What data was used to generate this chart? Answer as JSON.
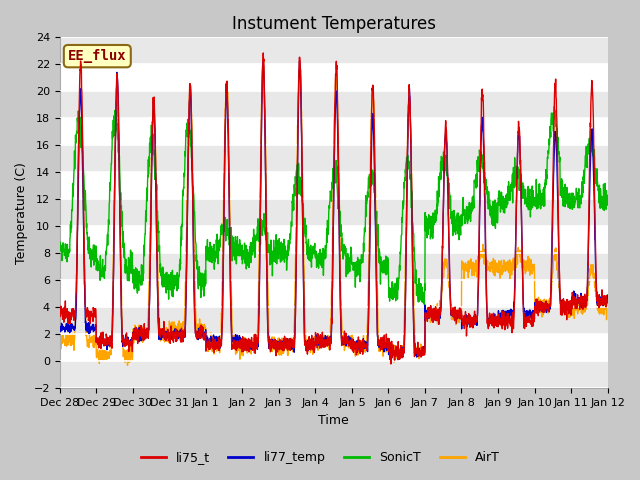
{
  "title": "Instument Temperatures",
  "xlabel": "Time",
  "ylabel": "Temperature (C)",
  "ylim": [
    -2,
    24
  ],
  "yticks": [
    -2,
    0,
    2,
    4,
    6,
    8,
    10,
    12,
    14,
    16,
    18,
    20,
    22,
    24
  ],
  "annotation_text": "EE_flux",
  "annotation_color": "#8B0000",
  "annotation_bg": "#FFFFC0",
  "series_colors": {
    "li75_t": "#DD0000",
    "li77_temp": "#0000CC",
    "SonicT": "#00BB00",
    "AirT": "#FFA500"
  },
  "line_width": 1.0,
  "fig_bg": "#C8C8C8",
  "plot_bg": "#FFFFFF",
  "axes_bg": "#E8E8E8",
  "title_fontsize": 12,
  "label_fontsize": 9,
  "tick_fontsize": 8
}
